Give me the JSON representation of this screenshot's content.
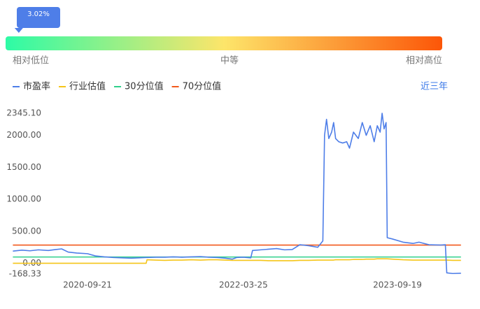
{
  "gauge": {
    "value": 3.02,
    "value_label": "3.02%",
    "low_label": "相对低位",
    "mid_label": "中等",
    "high_label": "相对高位"
  },
  "range_link": "近三年",
  "chart_data": {
    "type": "line",
    "x": [
      "2020-01-02",
      "2020-02-03",
      "2020-03-02",
      "2020-04-01",
      "2020-05-06",
      "2020-06-01",
      "2020-06-22",
      "2020-07-15",
      "2020-08-14",
      "2020-09-21",
      "2020-10-19",
      "2020-11-20",
      "2020-12-21",
      "2021-01-20",
      "2021-02-22",
      "2021-03-22",
      "2021-04-16",
      "2021-04-19",
      "2021-05-20",
      "2021-06-21",
      "2021-07-20",
      "2021-08-20",
      "2021-09-22",
      "2021-10-25",
      "2021-11-22",
      "2021-12-22",
      "2022-01-20",
      "2022-02-14",
      "2022-03-01",
      "2022-03-25",
      "2022-04-20",
      "2022-04-26",
      "2022-05-25",
      "2022-06-22",
      "2022-07-20",
      "2022-08-17",
      "2022-09-13",
      "2022-10-10",
      "2022-11-10",
      "2022-12-12",
      "2022-12-30",
      "2023-01-05",
      "2023-01-12",
      "2023-01-20",
      "2023-01-30",
      "2023-02-06",
      "2023-02-13",
      "2023-02-24",
      "2023-03-10",
      "2023-03-24",
      "2023-04-03",
      "2023-04-17",
      "2023-05-04",
      "2023-05-18",
      "2023-06-01",
      "2023-06-15",
      "2023-06-29",
      "2023-07-10",
      "2023-07-20",
      "2023-07-27",
      "2023-08-03",
      "2023-08-10",
      "2023-08-14",
      "2023-09-01",
      "2023-10-09",
      "2023-11-13",
      "2023-12-04",
      "2024-01-08",
      "2024-02-19",
      "2024-03-06",
      "2024-03-11",
      "2024-04-01",
      "2024-04-30"
    ],
    "series": [
      {
        "name": "市盈率",
        "color": "#4e7ee8",
        "values": [
          190,
          205,
          195,
          210,
          200,
          215,
          225,
          175,
          160,
          150,
          115,
          100,
          90,
          85,
          80,
          85,
          90,
          90,
          95,
          95,
          100,
          95,
          100,
          105,
          95,
          90,
          80,
          65,
          90,
          95,
          85,
          200,
          210,
          220,
          230,
          210,
          215,
          290,
          275,
          250,
          350,
          2000,
          2250,
          1950,
          2050,
          2200,
          1950,
          1900,
          1880,
          1900,
          1800,
          2050,
          1950,
          2200,
          2000,
          2150,
          1900,
          2150,
          2050,
          2345.1,
          2100,
          2200,
          400,
          380,
          330,
          310,
          330,
          290,
          285,
          290,
          -150,
          -160,
          -155
        ]
      },
      {
        "name": "行业估值",
        "color": "#f5c518",
        "values": [
          0,
          0,
          0,
          0,
          0,
          0,
          0,
          0,
          0,
          0,
          0,
          0,
          0,
          0,
          0,
          0,
          0,
          55,
          50,
          45,
          50,
          50,
          55,
          50,
          55,
          55,
          50,
          45,
          45,
          45,
          45,
          45,
          45,
          40,
          40,
          40,
          40,
          45,
          45,
          50,
          50,
          50,
          50,
          50,
          50,
          50,
          55,
          55,
          55,
          55,
          55,
          60,
          60,
          60,
          65,
          65,
          65,
          70,
          70,
          70,
          70,
          70,
          70,
          65,
          55,
          50,
          50,
          50,
          50,
          50,
          50,
          45,
          45
        ]
      },
      {
        "name": "30分位值",
        "color": "#2fd08b",
        "values": [
          98,
          98,
          98,
          98,
          98,
          98,
          98,
          98,
          98,
          98,
          98,
          98,
          98,
          98,
          98,
          98,
          98,
          98,
          98,
          98,
          98,
          98,
          98,
          98,
          98,
          98,
          98,
          98,
          98,
          98,
          98,
          98,
          98,
          98,
          98,
          98,
          98,
          98,
          98,
          98,
          98,
          98,
          98,
          98,
          98,
          98,
          98,
          98,
          98,
          98,
          98,
          98,
          98,
          98,
          98,
          98,
          98,
          98,
          98,
          98,
          98,
          98,
          98,
          98,
          98,
          98,
          98,
          98,
          98,
          98,
          98,
          98,
          98
        ]
      },
      {
        "name": "70分位值",
        "color": "#f2591b",
        "values": [
          284,
          284,
          284,
          284,
          284,
          284,
          284,
          284,
          284,
          284,
          284,
          284,
          284,
          284,
          284,
          284,
          284,
          284,
          284,
          284,
          284,
          284,
          284,
          284,
          284,
          284,
          284,
          284,
          284,
          284,
          284,
          284,
          284,
          284,
          284,
          284,
          284,
          284,
          284,
          284,
          284,
          284,
          284,
          284,
          284,
          284,
          284,
          284,
          284,
          284,
          284,
          284,
          284,
          284,
          284,
          284,
          284,
          284,
          284,
          284,
          284,
          284,
          284,
          284,
          284,
          284,
          284,
          284,
          284,
          284,
          284,
          284,
          284
        ]
      }
    ],
    "xlim": [
      "2020-01-01",
      "2024-05-03"
    ],
    "xticks": [
      "2020-09-21",
      "2022-03-25",
      "2023-09-19"
    ],
    "ylim": [
      -168.33,
      2345.1
    ],
    "yticks": [
      -168.33,
      {
        "value": 0,
        "label": "0.00"
      },
      {
        "value": 500,
        "label": "500.00"
      },
      {
        "value": 1000,
        "label": "1000.00"
      },
      {
        "value": 1500,
        "label": "1500.00"
      },
      {
        "value": 2000,
        "label": "2000.00"
      },
      {
        "value": 2345.1,
        "label": "2345.10"
      }
    ],
    "grid": false
  }
}
